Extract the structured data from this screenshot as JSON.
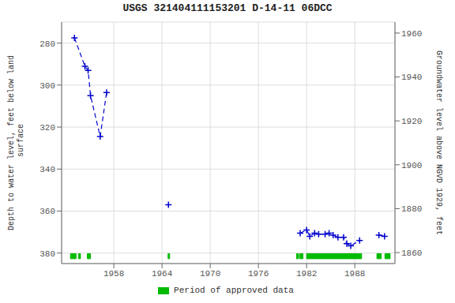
{
  "chart_data": {
    "type": "line",
    "title": "USGS 321404111153201 D-14-11 06DCC",
    "y_label": "Depth to water level, feet below land\n surface",
    "y2_label": "Groundwater level above NGVD 1929, feet",
    "xlim": [
      1951.5,
      1993.0
    ],
    "xticks": [
      1958,
      1964,
      1970,
      1976,
      1982,
      1988
    ],
    "ylim": [
      385,
      270
    ],
    "yticks": [
      280,
      300,
      320,
      340,
      360,
      380
    ],
    "y2lim": [
      1855,
      1965
    ],
    "y2ticks": [
      1860,
      1880,
      1900,
      1920,
      1940,
      1960
    ],
    "grid": true,
    "legend": "bottom",
    "series": [
      {
        "type": "line",
        "line_style": "dashed",
        "color": "#0000cc",
        "x": [
          1953.1,
          1954.4,
          1954.8,
          1955.1,
          1956.3,
          1957.1
        ],
        "values": [
          277.5,
          291.0,
          293.0,
          305.0,
          324.5,
          303.5
        ]
      },
      {
        "type": "line",
        "line_style": "dashed",
        "color": "#0000cc",
        "x": [
          1981.2,
          1982.0,
          1982.4,
          1983.0,
          1983.5,
          1984.3,
          1984.8,
          1985.3,
          1985.9,
          1986.6,
          1987.0,
          1987.5,
          1988.6
        ],
        "values": [
          370.5,
          369.0,
          372.0,
          370.5,
          371.0,
          371.0,
          370.5,
          371.5,
          372.5,
          372.5,
          375.5,
          376.5,
          374.0
        ]
      },
      {
        "type": "line",
        "line_style": "dashed",
        "color": "#0000cc",
        "x": [
          1991.0,
          1991.7
        ],
        "values": [
          371.5,
          372.0
        ]
      },
      {
        "type": "scatter",
        "marker": "plus",
        "color": "#0000cc",
        "x": [
          1953.1,
          1954.4,
          1954.8,
          1955.1,
          1956.3,
          1957.1,
          1964.8,
          1981.2,
          1982.0,
          1982.4,
          1983.0,
          1983.5,
          1984.3,
          1984.8,
          1985.3,
          1985.9,
          1986.6,
          1987.0,
          1987.5,
          1988.6,
          1991.0,
          1991.7
        ],
        "values": [
          277.5,
          291.0,
          293.0,
          305.0,
          324.5,
          303.5,
          357.0,
          370.5,
          369.0,
          372.0,
          370.5,
          371.0,
          371.0,
          370.5,
          371.5,
          372.5,
          372.5,
          375.5,
          376.5,
          374.0,
          371.5,
          372.0
        ]
      },
      {
        "type": "range",
        "name": "Period of approved data",
        "color": "#00bb00",
        "ranges": [
          [
            1952.6,
            1953.3
          ],
          [
            1953.6,
            1953.85
          ],
          [
            1954.7,
            1955.1
          ],
          [
            1964.75,
            1964.95
          ],
          [
            1980.75,
            1981.0
          ],
          [
            1981.15,
            1981.55
          ],
          [
            1982.0,
            1988.85
          ],
          [
            1990.75,
            1991.3
          ],
          [
            1991.75,
            1992.4
          ]
        ],
        "y_center": 381.5,
        "half_height": 1.2
      }
    ]
  }
}
